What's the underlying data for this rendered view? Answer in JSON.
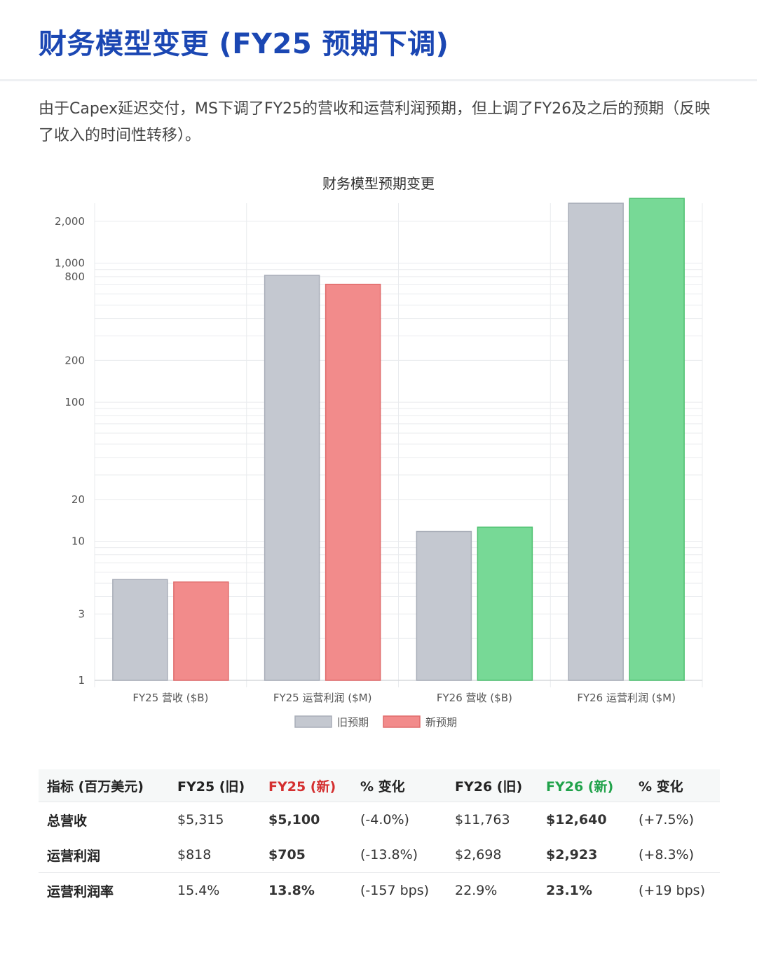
{
  "header": {
    "title": "财务模型变更 (FY25 预期下调)",
    "intro": "由于Capex延迟交付，MS下调了FY25的营收和运营利润预期，但上调了FY26及之后的预期（反映了收入的时间性转移）。"
  },
  "chart_data": {
    "type": "bar",
    "title": "财务模型预期变更",
    "y_scale": "log",
    "ylim": [
      1,
      2700
    ],
    "y_ticks": [
      1,
      3,
      10,
      20,
      100,
      200,
      800,
      1000,
      2000
    ],
    "y_tick_labels": [
      "1",
      "3",
      "10",
      "20",
      "100",
      "200",
      "800",
      "1,000",
      "2,000"
    ],
    "categories": [
      "FY25 营收 ($B)",
      "FY25 运营利润 ($M)",
      "FY26 营收 ($B)",
      "FY26 运营利润 ($M)"
    ],
    "series": [
      {
        "name": "旧预期",
        "values": [
          5.315,
          818,
          11.763,
          2698
        ],
        "color": "#c4c8d0",
        "stroke": "#a8adb8"
      },
      {
        "name": "新预期",
        "values": [
          5.1,
          705,
          12.64,
          2923
        ],
        "colors": [
          "#f28b8b",
          "#f28b8b",
          "#77d996",
          "#77d996"
        ],
        "strokes": [
          "#e06b6b",
          "#e06b6b",
          "#4fc070",
          "#4fc070"
        ]
      }
    ],
    "legend": [
      {
        "name": "旧预期",
        "color": "#c4c8d0",
        "stroke": "#a8adb8"
      },
      {
        "name": "新预期",
        "color": "#f28b8b",
        "stroke": "#e06b6b"
      }
    ],
    "legend_position": "bottom",
    "grid": true
  },
  "table": {
    "headers": [
      "指标 (百万美元)",
      "FY25 (旧)",
      "FY25 (新)",
      "% 变化",
      "FY26 (旧)",
      "FY26 (新)",
      "% 变化"
    ],
    "rows": [
      [
        "总营收",
        "$5,315",
        "$5,100",
        "(-4.0%)",
        "$11,763",
        "$12,640",
        "(+7.5%)"
      ],
      [
        "运营利润",
        "$818",
        "$705",
        "(-13.8%)",
        "$2,698",
        "$2,923",
        "(+8.3%)"
      ],
      [
        "运营利润率",
        "15.4%",
        "13.8%",
        "(-157 bps)",
        "22.9%",
        "23.1%",
        "(+19 bps)"
      ]
    ]
  }
}
